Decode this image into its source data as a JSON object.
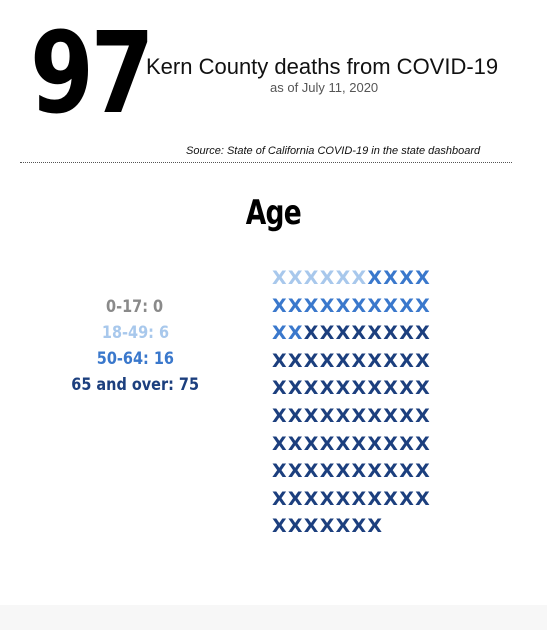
{
  "header": {
    "number": "97",
    "headline": "Kern County deaths from COVID-19",
    "as_of": "as of July 11, 2020",
    "source": "Source: State of California COVID-19 in the state dashboard"
  },
  "section_title": "Age",
  "legend": [
    {
      "label": "0-17:",
      "value": "0",
      "color": "#8a8a8a"
    },
    {
      "label": "18-49:",
      "value": "6",
      "color": "#a8c8ec"
    },
    {
      "label": "50-64:",
      "value": "16",
      "color": "#3a78cc"
    },
    {
      "label": "65 and over:",
      "value": "75",
      "color": "#1c3f7e"
    }
  ],
  "chart_data": {
    "type": "waffle",
    "glyph": "X",
    "columns": 10,
    "categories": [
      "0-17",
      "18-49",
      "50-64",
      "65 and over"
    ],
    "values": [
      0,
      6,
      16,
      75
    ],
    "colors": [
      "#8a8a8a",
      "#a8c8ec",
      "#3a78cc",
      "#1c3f7e"
    ],
    "total": 97
  }
}
